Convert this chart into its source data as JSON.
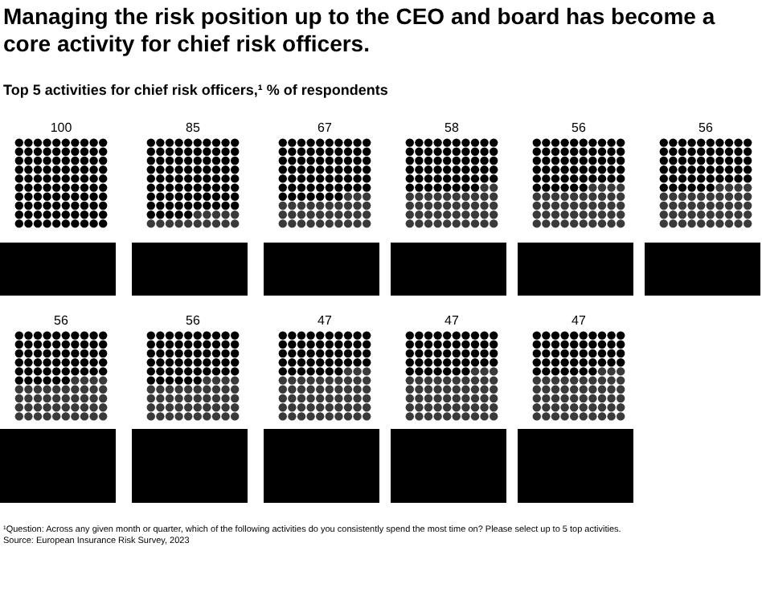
{
  "chart_data": {
    "type": "other",
    "title": "Managing the risk position up to the CEO and board has become a core activity for chief risk officers.",
    "subtitle": "Top 5 activities for chief risk officers,¹ % of respondents",
    "categories": [
      null,
      null,
      null,
      null,
      null,
      null,
      null,
      null,
      null,
      null,
      null
    ],
    "values": [
      100,
      85,
      67,
      58,
      56,
      56,
      56,
      56,
      47,
      47,
      47
    ],
    "color": "#000000",
    "data_labels": true,
    "annotations": [
      "¹Question: Across any given month or quarter, which of the following activities do you consistently spend the most time on? Please select up to 5 top activities.",
      "Source: European Insurance Risk Survey, 2023"
    ]
  }
}
